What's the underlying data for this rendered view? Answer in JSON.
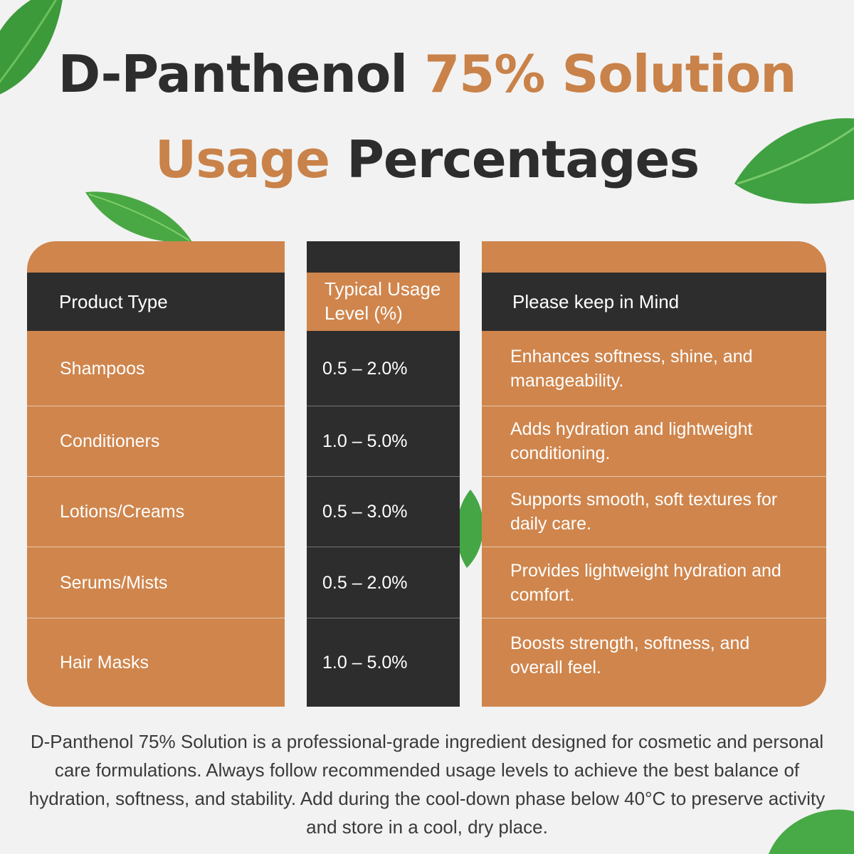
{
  "title": {
    "line1_dark": "D-Panthenol ",
    "line1_accent": "75% Solution",
    "line2_accent": "Usage",
    "line2_dark": " Percentages"
  },
  "table": {
    "headers": {
      "product_type": "Product Type",
      "usage_line1": "Typical Usage",
      "usage_line2": "Level (%)",
      "notes": "Please keep in Mind"
    },
    "rows": [
      {
        "product": "Shampoos",
        "level": "0.5 – 2.0%",
        "note": "Enhances softness, shine, and manageability."
      },
      {
        "product": "Conditioners",
        "level": "1.0 – 5.0%",
        "note": "Adds hydration and lightweight conditioning."
      },
      {
        "product": "Lotions/Creams",
        "level": "0.5 – 3.0%",
        "note": "Supports smooth, soft textures for daily care."
      },
      {
        "product": "Serums/Mists",
        "level": "0.5 – 2.0%",
        "note": "Provides lightweight hydration and comfort."
      },
      {
        "product": "Hair Masks",
        "level": "1.0 – 5.0%",
        "note": "Boosts strength, softness, and overall feel."
      }
    ]
  },
  "footer": "D-Panthenol 75% Solution is a professional-grade ingredient designed for cosmetic and personal care formulations. Always follow recommended usage levels to achieve the best balance of hydration, softness, and stability. Add during the cool-down phase below 40°C to preserve activity and store in a cool, dry place.",
  "decorations": [
    "leaf-icon"
  ],
  "colors": {
    "accent": "#cf854c",
    "dark": "#2d2d2d",
    "background": "#f2f2f2"
  }
}
